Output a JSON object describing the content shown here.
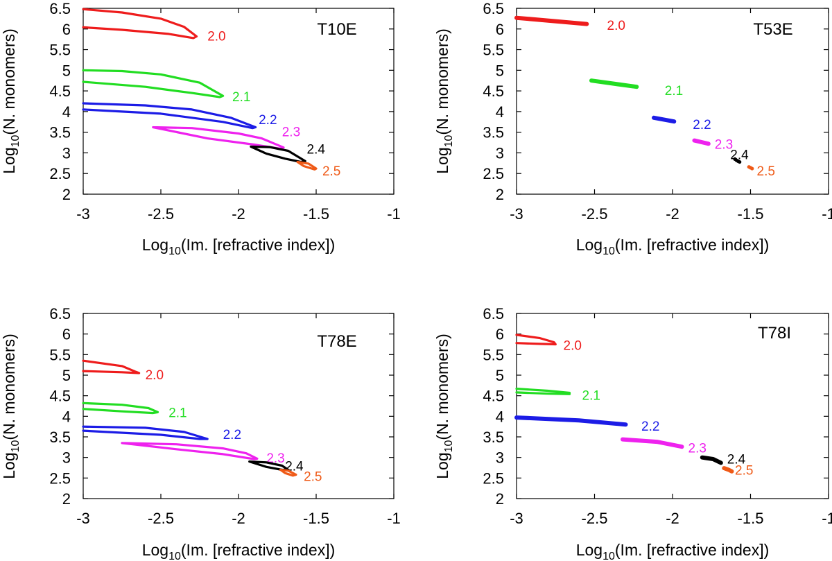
{
  "colors": {
    "2.0": "#ee1c1c",
    "2.1": "#22dd22",
    "2.2": "#1c1ce6",
    "2.3": "#ee22ee",
    "2.4": "#000000",
    "2.5": "#ef5a17"
  },
  "chart_data": [
    {
      "type": "line",
      "title": "T10E",
      "xlabel": "Log10(Im. [refractive index])",
      "ylabel": "Log10(N. monomers)",
      "xlim": [
        -3,
        -1
      ],
      "ylim": [
        2,
        6.5
      ],
      "xticks": [
        "-3",
        "-2.5",
        "-2",
        "-1.5",
        "-1"
      ],
      "yticks": [
        "2",
        "2.5",
        "3",
        "3.5",
        "4",
        "4.5",
        "5",
        "5.5",
        "6",
        "6.5"
      ],
      "series": [
        {
          "name": "2.0",
          "kind": "loop",
          "label_at": [
            -2.2,
            5.82
          ],
          "x": [
            -3,
            -2.75,
            -2.5,
            -2.35,
            -2.27,
            -2.29,
            -2.45,
            -2.75,
            -3
          ],
          "y": [
            6.48,
            6.4,
            6.25,
            6.05,
            5.82,
            5.78,
            5.88,
            5.98,
            6.04
          ]
        },
        {
          "name": "2.1",
          "kind": "loop",
          "label_at": [
            -2.04,
            4.35
          ],
          "x": [
            -3,
            -2.75,
            -2.5,
            -2.25,
            -2.1,
            -2.12,
            -2.3,
            -2.6,
            -3
          ],
          "y": [
            5.0,
            4.98,
            4.9,
            4.7,
            4.38,
            4.35,
            4.45,
            4.6,
            4.72
          ]
        },
        {
          "name": "2.2",
          "kind": "loop",
          "label_at": [
            -1.87,
            3.8
          ],
          "x": [
            -3,
            -2.6,
            -2.3,
            -2.05,
            -1.89,
            -1.91,
            -2.1,
            -2.5,
            -3
          ],
          "y": [
            4.2,
            4.15,
            4.05,
            3.85,
            3.62,
            3.6,
            3.75,
            3.95,
            4.05
          ]
        },
        {
          "name": "2.3",
          "kind": "loop",
          "label_at": [
            -1.72,
            3.5
          ],
          "x": [
            -2.55,
            -2.3,
            -2.0,
            -1.85,
            -1.71,
            -1.73,
            -1.9,
            -2.2,
            -2.55
          ],
          "y": [
            3.62,
            3.6,
            3.47,
            3.35,
            3.13,
            3.1,
            3.2,
            3.35,
            3.62
          ]
        },
        {
          "name": "2.4",
          "kind": "loop",
          "label_at": [
            -1.56,
            3.08
          ],
          "x": [
            -1.92,
            -1.8,
            -1.68,
            -1.57,
            -1.6,
            -1.7,
            -1.82,
            -1.92
          ],
          "y": [
            3.15,
            3.14,
            3.05,
            2.8,
            2.78,
            2.86,
            2.98,
            3.15
          ]
        },
        {
          "name": "2.5",
          "kind": "loop",
          "label_at": [
            -1.46,
            2.55
          ],
          "x": [
            -1.62,
            -1.55,
            -1.5,
            -1.51,
            -1.58,
            -1.62
          ],
          "y": [
            2.78,
            2.74,
            2.62,
            2.6,
            2.68,
            2.78
          ]
        }
      ]
    },
    {
      "type": "line",
      "title": "T53E",
      "xlabel": "Log10(Im. [refractive index])",
      "ylabel": "Log10(N. monomers)",
      "xlim": [
        -3,
        -1
      ],
      "ylim": [
        2,
        6.5
      ],
      "xticks": [
        "-3",
        "-2.5",
        "-2",
        "-1.5",
        "-1"
      ],
      "yticks": [
        "2",
        "2.5",
        "3",
        "3.5",
        "4",
        "4.5",
        "5",
        "5.5",
        "6",
        "6.5"
      ],
      "series": [
        {
          "name": "2.0",
          "kind": "band",
          "label_at": [
            -2.42,
            6.08
          ],
          "x": [
            -3,
            -2.55
          ],
          "y": [
            6.27,
            6.12
          ]
        },
        {
          "name": "2.1",
          "kind": "band",
          "label_at": [
            -2.05,
            4.5
          ],
          "x": [
            -2.52,
            -2.23
          ],
          "y": [
            4.75,
            4.6
          ]
        },
        {
          "name": "2.2",
          "kind": "band",
          "label_at": [
            -1.87,
            3.68
          ],
          "x": [
            -2.12,
            -1.99
          ],
          "y": [
            3.85,
            3.76
          ]
        },
        {
          "name": "2.3",
          "kind": "band",
          "label_at": [
            -1.73,
            3.2
          ],
          "x": [
            -1.86,
            -1.77
          ],
          "y": [
            3.3,
            3.22
          ]
        },
        {
          "name": "2.4",
          "kind": "dots",
          "label_at": [
            -1.63,
            2.95
          ],
          "x": [
            -1.6,
            -1.59,
            -1.58,
            -1.57
          ],
          "y": [
            2.85,
            2.82,
            2.8,
            2.78
          ]
        },
        {
          "name": "2.5",
          "kind": "dots",
          "label_at": [
            -1.46,
            2.55
          ],
          "x": [
            -1.51,
            -1.5,
            -1.49
          ],
          "y": [
            2.66,
            2.64,
            2.62
          ]
        }
      ]
    },
    {
      "type": "line",
      "title": "T78E",
      "xlabel": "Log10(Im. [refractive index])",
      "ylabel": "Log10(N. monomers)",
      "xlim": [
        -3,
        -1
      ],
      "ylim": [
        2,
        6.5
      ],
      "xticks": [
        "-3",
        "-2.5",
        "-2",
        "-1.5",
        "-1"
      ],
      "yticks": [
        "2",
        "2.5",
        "3",
        "3.5",
        "4",
        "4.5",
        "5",
        "5.5",
        "6",
        "6.5"
      ],
      "series": [
        {
          "name": "2.0",
          "kind": "loop",
          "label_at": [
            -2.6,
            5.0
          ],
          "x": [
            -3,
            -2.75,
            -2.66,
            -2.64,
            -2.75,
            -3
          ],
          "y": [
            5.35,
            5.22,
            5.08,
            5.05,
            5.07,
            5.1
          ]
        },
        {
          "name": "2.1",
          "kind": "loop",
          "label_at": [
            -2.45,
            4.08
          ],
          "x": [
            -3,
            -2.75,
            -2.58,
            -2.52,
            -2.55,
            -2.75,
            -3
          ],
          "y": [
            4.32,
            4.28,
            4.2,
            4.1,
            4.08,
            4.12,
            4.18
          ]
        },
        {
          "name": "2.2",
          "kind": "loop",
          "label_at": [
            -2.1,
            3.55
          ],
          "x": [
            -3,
            -2.6,
            -2.35,
            -2.2,
            -2.25,
            -2.5,
            -3
          ],
          "y": [
            3.75,
            3.72,
            3.62,
            3.45,
            3.45,
            3.55,
            3.65
          ]
        },
        {
          "name": "2.3",
          "kind": "loop",
          "label_at": [
            -1.82,
            2.98
          ],
          "x": [
            -2.75,
            -2.4,
            -2.1,
            -1.95,
            -1.88,
            -1.9,
            -2.1,
            -2.4,
            -2.75
          ],
          "y": [
            3.35,
            3.32,
            3.22,
            3.1,
            2.97,
            2.96,
            3.08,
            3.2,
            3.35
          ]
        },
        {
          "name": "2.4",
          "kind": "loop",
          "label_at": [
            -1.7,
            2.78
          ],
          "x": [
            -1.93,
            -1.82,
            -1.72,
            -1.68,
            -1.72,
            -1.82,
            -1.93
          ],
          "y": [
            2.9,
            2.88,
            2.8,
            2.7,
            2.7,
            2.77,
            2.9
          ]
        },
        {
          "name": "2.5",
          "kind": "loop",
          "label_at": [
            -1.58,
            2.53
          ],
          "x": [
            -1.73,
            -1.68,
            -1.63,
            -1.65,
            -1.7,
            -1.73
          ],
          "y": [
            2.7,
            2.68,
            2.58,
            2.56,
            2.62,
            2.7
          ]
        }
      ]
    },
    {
      "type": "line",
      "title": "T78I",
      "xlabel": "Log10(Im. [refractive index])",
      "ylabel": "Log10(N. monomers)",
      "xlim": [
        -3,
        -1
      ],
      "ylim": [
        2,
        6.5
      ],
      "xticks": [
        "-3",
        "-2.5",
        "-2",
        "-1.5",
        "-1"
      ],
      "yticks": [
        "2",
        "2.5",
        "3",
        "3.5",
        "4",
        "4.5",
        "5",
        "5.5",
        "6",
        "6.5"
      ],
      "series": [
        {
          "name": "2.0",
          "kind": "loop",
          "label_at": [
            -2.7,
            5.72
          ],
          "x": [
            -3,
            -2.85,
            -2.76,
            -2.75,
            -2.85,
            -3
          ],
          "y": [
            5.98,
            5.9,
            5.8,
            5.75,
            5.76,
            5.78
          ]
        },
        {
          "name": "2.1",
          "kind": "loop",
          "label_at": [
            -2.58,
            4.5
          ],
          "x": [
            -3,
            -2.8,
            -2.66,
            -2.66,
            -2.8,
            -3
          ],
          "y": [
            4.67,
            4.62,
            4.57,
            4.54,
            4.55,
            4.58
          ]
        },
        {
          "name": "2.2",
          "kind": "band",
          "label_at": [
            -2.2,
            3.75
          ],
          "x": [
            -3,
            -2.6,
            -2.3
          ],
          "y": [
            3.97,
            3.9,
            3.8
          ]
        },
        {
          "name": "2.3",
          "kind": "band",
          "label_at": [
            -1.9,
            3.22
          ],
          "x": [
            -2.32,
            -2.1,
            -1.94
          ],
          "y": [
            3.44,
            3.38,
            3.26
          ]
        },
        {
          "name": "2.4",
          "kind": "band",
          "label_at": [
            -1.65,
            2.95
          ],
          "x": [
            -1.81,
            -1.74,
            -1.69
          ],
          "y": [
            3.0,
            2.96,
            2.87
          ]
        },
        {
          "name": "2.5",
          "kind": "band",
          "label_at": [
            -1.6,
            2.68
          ],
          "x": [
            -1.67,
            -1.64,
            -1.62
          ],
          "y": [
            2.74,
            2.7,
            2.66
          ]
        }
      ]
    }
  ]
}
